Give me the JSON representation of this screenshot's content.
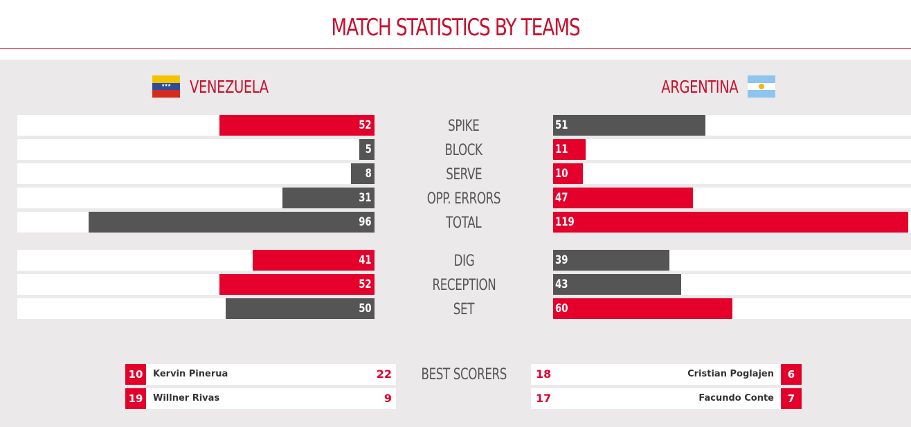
{
  "title": "MATCH STATISTICS BY TEAMS",
  "teams": {
    "left": {
      "name": "VENEZUELA",
      "flag": "venezuela-flag"
    },
    "right": {
      "name": "ARGENTINA",
      "flag": "argentina-flag"
    }
  },
  "colors": {
    "accent": "#e4002b",
    "dark": "#555555",
    "panel": "#ebe9ea",
    "title": "#c8102e"
  },
  "stats": [
    {
      "label": "SPIKE",
      "left": "52",
      "right": "51",
      "left_color": "red",
      "right_color": "dark"
    },
    {
      "label": "BLOCK",
      "left": "5",
      "right": "11",
      "left_color": "dark",
      "right_color": "red"
    },
    {
      "label": "SERVE",
      "left": "8",
      "right": "10",
      "left_color": "dark",
      "right_color": "red"
    },
    {
      "label": "OPP. ERRORS",
      "left": "31",
      "right": "47",
      "left_color": "dark",
      "right_color": "red"
    },
    {
      "label": "TOTAL",
      "left": "96",
      "right": "119",
      "left_color": "dark",
      "right_color": "red"
    },
    {
      "label": "DIG",
      "left": "41",
      "right": "39",
      "left_color": "red",
      "right_color": "dark"
    },
    {
      "label": "RECEPTION",
      "left": "52",
      "right": "43",
      "left_color": "red",
      "right_color": "dark"
    },
    {
      "label": "SET",
      "left": "50",
      "right": "60",
      "left_color": "dark",
      "right_color": "red"
    }
  ],
  "best_scorers": {
    "label": "BEST SCORERS",
    "left": [
      {
        "number": "10",
        "name": "Kervin Pinerua",
        "points": "22"
      },
      {
        "number": "19",
        "name": "Willner Rivas",
        "points": "9"
      }
    ],
    "right": [
      {
        "number": "6",
        "name": "Cristian Poglajen",
        "points": "18"
      },
      {
        "number": "7",
        "name": "Facundo Conte",
        "points": "17"
      }
    ]
  }
}
